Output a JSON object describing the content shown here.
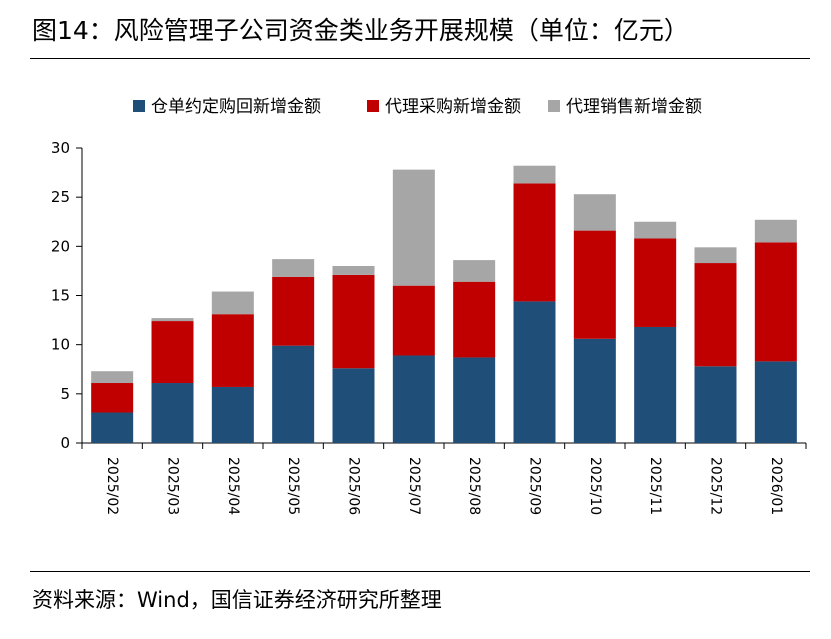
{
  "title": "图14：风险管理子公司资金类业务开展规模（单位：亿元）",
  "source": "资料来源：Wind，国信证券经济研究所整理",
  "colors": {
    "series": [
      "#1f4e79",
      "#c00000",
      "#a6a6a6"
    ],
    "axis": "#000000"
  },
  "chart_data": {
    "type": "bar",
    "stacked": true,
    "title": "风险管理子公司资金类业务开展规模（单位：亿元）",
    "xlabel": "",
    "ylabel": "",
    "ylim": [
      0,
      30
    ],
    "yticks": [
      0,
      5,
      10,
      15,
      20,
      25,
      30
    ],
    "legend_position": "top",
    "categories": [
      "2025/02",
      "2025/03",
      "2025/04",
      "2025/05",
      "2025/06",
      "2025/07",
      "2025/08",
      "2025/09",
      "2025/10",
      "2025/11",
      "2025/12",
      "2026/01"
    ],
    "series": [
      {
        "name": "仓单约定购回新增金额",
        "values": [
          3.1,
          6.1,
          5.7,
          9.9,
          7.6,
          8.9,
          8.7,
          14.4,
          10.6,
          11.8,
          7.8,
          8.3
        ]
      },
      {
        "name": "代理采购新增金额",
        "values": [
          3.0,
          6.3,
          7.4,
          7.0,
          9.5,
          7.1,
          7.7,
          12.0,
          11.0,
          9.0,
          10.5,
          12.1
        ]
      },
      {
        "name": "代理销售新增金额",
        "values": [
          1.2,
          0.3,
          2.3,
          1.8,
          0.9,
          11.8,
          2.2,
          1.8,
          3.7,
          1.7,
          1.6,
          2.3
        ]
      }
    ]
  }
}
